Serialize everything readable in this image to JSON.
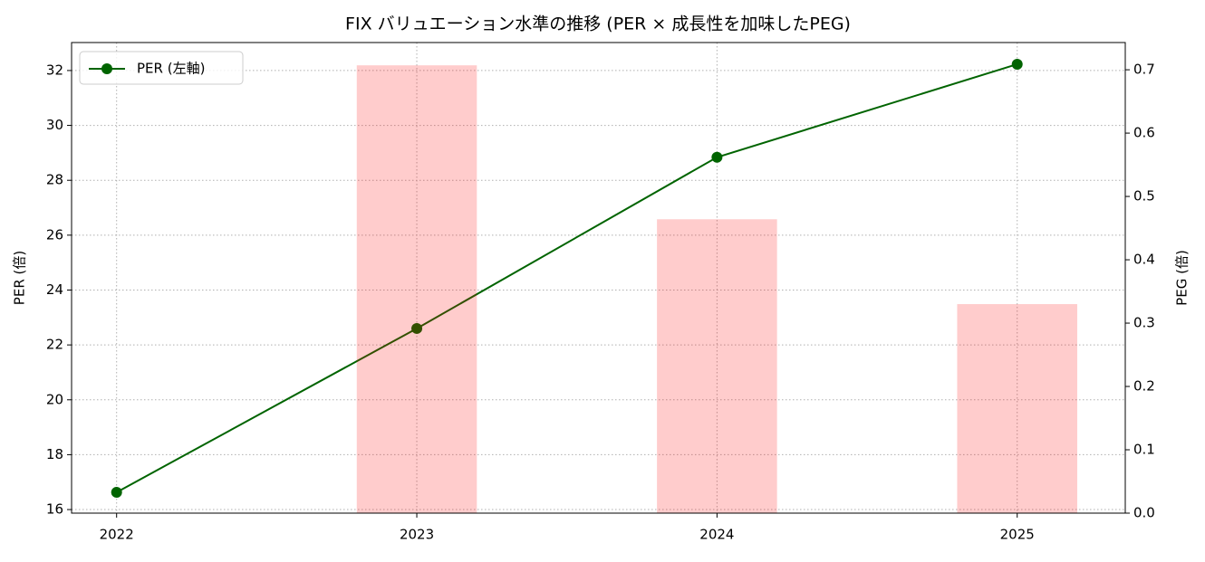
{
  "chart_data": {
    "type": "combo",
    "title": "FIX バリュエーション水準の推移 (PER × 成長性を加味したPEG)",
    "ylabel": "PER (倍)",
    "y2label": "PEG (倍)",
    "x": [
      2022,
      2023,
      2024,
      2025
    ],
    "xlim": [
      2021.85,
      2025.36
    ],
    "xticks": [
      2022,
      2023,
      2024,
      2025
    ],
    "ylim": [
      15.87,
      33.02
    ],
    "yticks": [
      16,
      18,
      20,
      22,
      24,
      26,
      28,
      30,
      32
    ],
    "y2lim": [
      0,
      0.743
    ],
    "y2ticks": [
      {
        "value": 0,
        "label": "0.0"
      },
      0.1,
      0.2,
      0.3,
      0.4,
      0.5,
      0.6,
      0.7
    ],
    "grid": true,
    "legend": "upper left",
    "series": [
      {
        "name": "PER (左軸)",
        "type": "line",
        "color": "#006400",
        "values": [
          16.63,
          22.6,
          28.84,
          32.23
        ]
      },
      {
        "type": "bar",
        "axis": "y2",
        "color": "#ff0000",
        "opacity": 0.2,
        "width": 0.4,
        "values": [
          null,
          0.707,
          0.464,
          0.33
        ]
      }
    ]
  }
}
